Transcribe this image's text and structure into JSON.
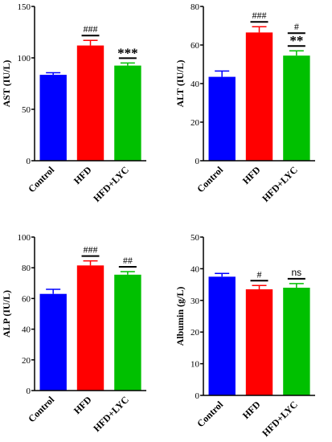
{
  "colors": {
    "control": "#0000ff",
    "hfd": "#ff0000",
    "hfd_lyc": "#00c000",
    "axis": "#000000"
  },
  "chart_data": [
    {
      "id": "ast",
      "type": "bar",
      "categories": [
        "Control",
        "HFD",
        "HFD+LYC"
      ],
      "values": [
        83.5,
        112,
        92.5
      ],
      "errors": [
        2,
        5,
        2.5
      ],
      "annotations": [
        "",
        "###",
        "***"
      ],
      "ylabel": "AST (IU/L)",
      "ylim": [
        0,
        150
      ],
      "yticks": [
        "0",
        "50",
        "100",
        "150"
      ],
      "grid": false
    },
    {
      "id": "alt",
      "type": "bar",
      "categories": [
        "Control",
        "HFD",
        "HFD+LYC"
      ],
      "values": [
        43.5,
        66.5,
        54.5
      ],
      "errors": [
        3,
        3,
        2.5
      ],
      "annotations": [
        "",
        "###",
        "#\n**"
      ],
      "ylabel": "ALT (IU/L)",
      "ylim": [
        0,
        80
      ],
      "yticks": [
        "0",
        "20",
        "40",
        "60",
        "80"
      ],
      "grid": false
    },
    {
      "id": "alp",
      "type": "bar",
      "categories": [
        "Control",
        "HFD",
        "HFD+LYC"
      ],
      "values": [
        63,
        81.5,
        75.5
      ],
      "errors": [
        3,
        3,
        2
      ],
      "annotations": [
        "",
        "###",
        "##"
      ],
      "ylabel": "ALP (IU/L)",
      "ylim": [
        0,
        100
      ],
      "yticks": [
        "0",
        "20",
        "40",
        "60",
        "80",
        "100"
      ],
      "grid": false
    },
    {
      "id": "albumin",
      "type": "bar",
      "categories": [
        "Control",
        "HFD",
        "HFD+LYC"
      ],
      "values": [
        37.5,
        33.5,
        34
      ],
      "errors": [
        1,
        1.2,
        1.3
      ],
      "annotations": [
        "",
        "#",
        "ns"
      ],
      "ylabel": "Albumin (g/L)",
      "ylim": [
        0,
        50
      ],
      "yticks": [
        "0",
        "10",
        "20",
        "30",
        "40",
        "50"
      ],
      "grid": false
    }
  ]
}
